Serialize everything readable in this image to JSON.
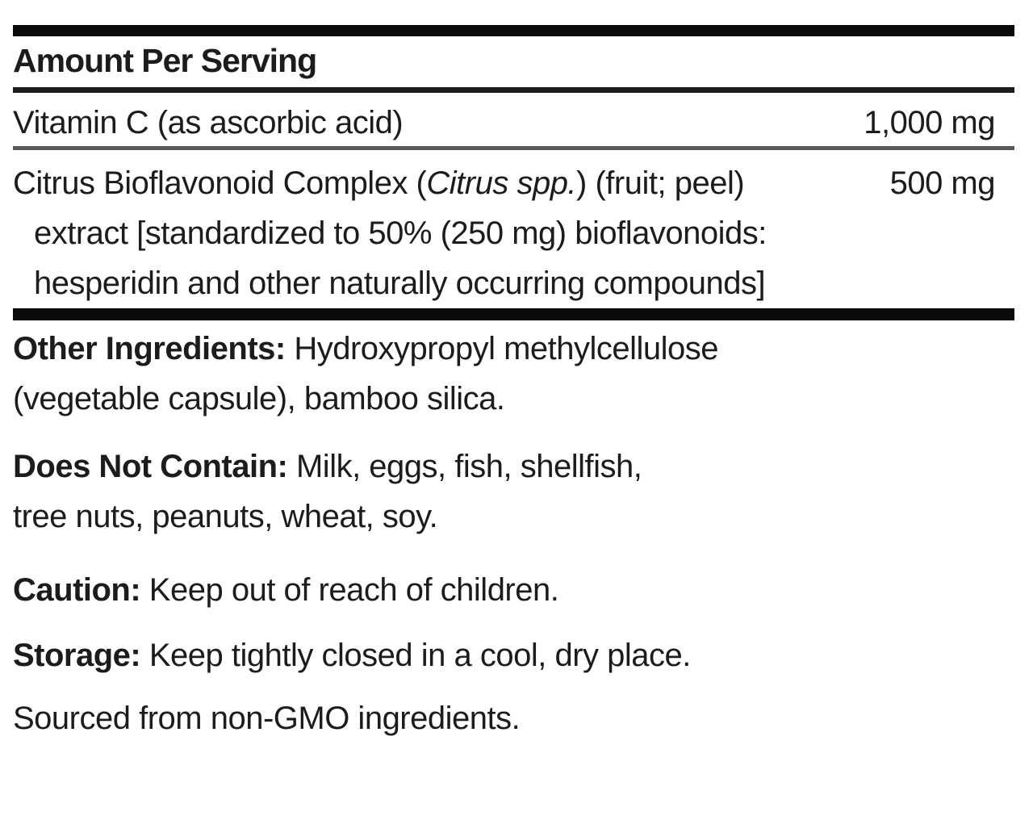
{
  "label": {
    "header": "Amount Per Serving",
    "rows": [
      {
        "name": "Vitamin C (as ascorbic acid)",
        "amount": "1,000 mg"
      },
      {
        "name_pre": "Citrus Bioflavonoid Complex (",
        "name_italic": "Citrus spp.",
        "name_post": ") (fruit; peel)",
        "amount": "500 mg",
        "continuation": [
          "extract [standardized to 50% (250 mg) bioflavonoids:",
          "hesperidin and other naturally occurring compounds]"
        ]
      }
    ],
    "paragraphs": [
      {
        "bold": "Other Ingredients:",
        "text": " Hydroxypropyl methylcellulose",
        "line2": "(vegetable capsule), bamboo silica."
      },
      {
        "bold": "Does Not Contain:",
        "text": " Milk, eggs, fish, shellfish,",
        "line2": "tree nuts, peanuts, wheat, soy."
      },
      {
        "bold": "Caution:",
        "text": " Keep out of reach of children."
      },
      {
        "bold": "Storage:",
        "text": " Keep tightly closed in a cool, dry place."
      },
      {
        "bold": "",
        "text": "Sourced from non-GMO ingredients."
      }
    ]
  },
  "colors": {
    "text": "#1c1c1f",
    "thick_bar": "#0a0a0a",
    "rule_dark": "#1e1e1e",
    "rule_gray": "#59595b",
    "background": "#ffffff"
  }
}
